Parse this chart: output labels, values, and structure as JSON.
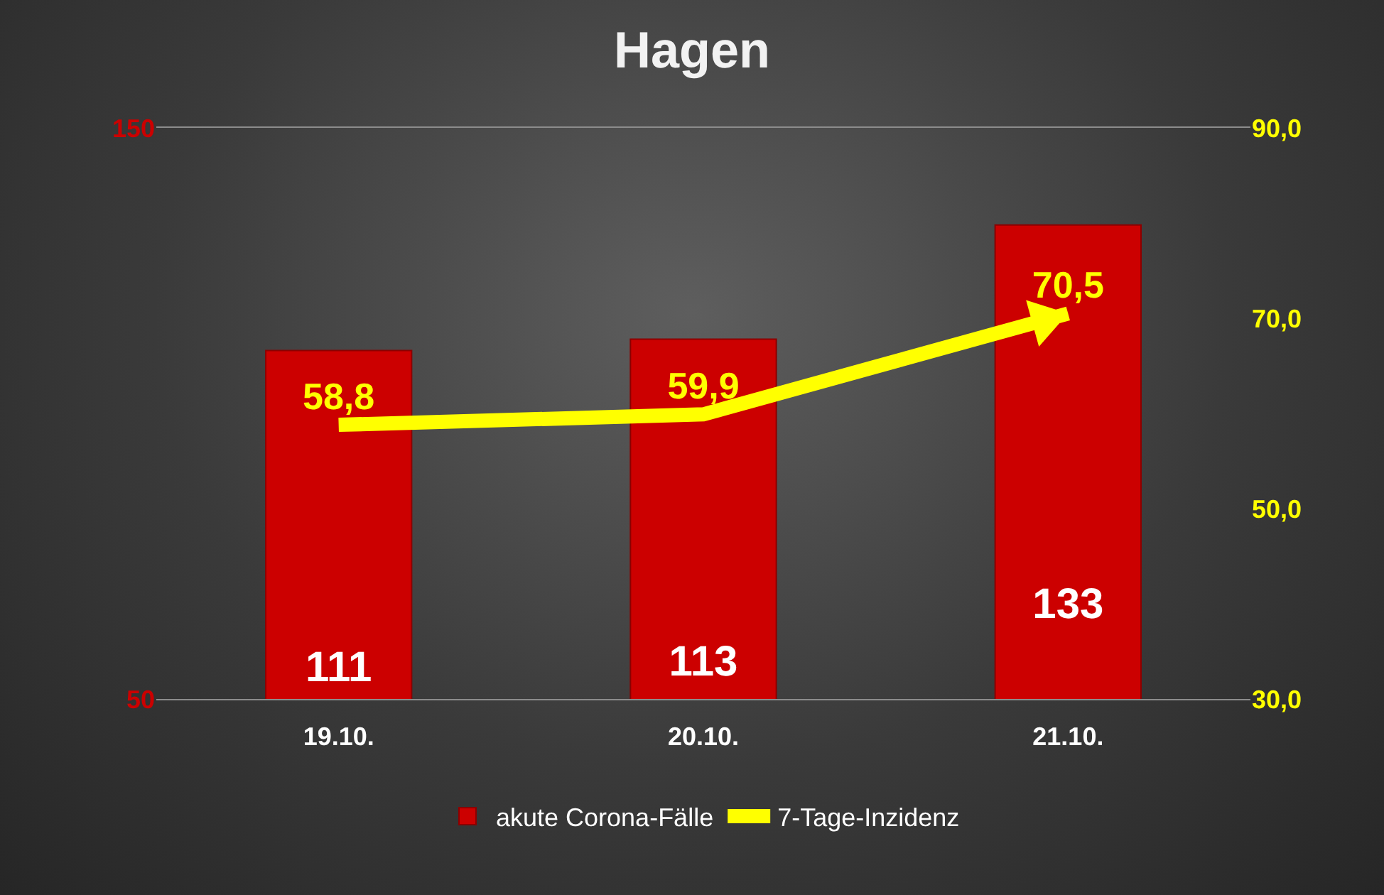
{
  "chart_data": {
    "type": "bar",
    "title": "Hagen",
    "categories": [
      "19.10.",
      "20.10.",
      "21.10."
    ],
    "series": [
      {
        "name": "akute Corona-Fälle",
        "color": "#cc0000",
        "values": [
          111,
          113,
          133
        ],
        "value_labels": [
          "111",
          "113",
          "133"
        ]
      },
      {
        "name": "7-Tage-Inzidenz",
        "type": "line",
        "axis": "y2",
        "color": "#ffff00",
        "values": [
          58.8,
          59.9,
          70.5
        ],
        "value_labels": [
          "58,8",
          "59,9",
          "70,5"
        ]
      }
    ],
    "ylim": [
      50,
      150
    ],
    "yticks": [
      50,
      150
    ],
    "y2lim": [
      30,
      90
    ],
    "y2ticks": [
      {
        "value": 30,
        "label": "30,0"
      },
      {
        "value": 50,
        "label": "50,0"
      },
      {
        "value": 70,
        "label": "70,0"
      },
      {
        "value": 90,
        "label": "90,0"
      }
    ],
    "legend": "bottom"
  }
}
